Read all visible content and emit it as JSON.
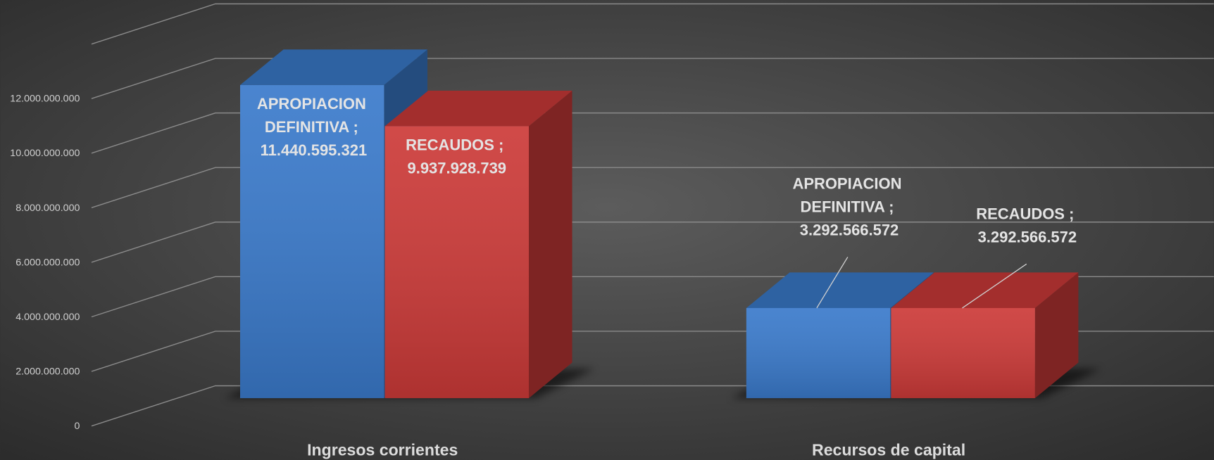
{
  "chart_data": {
    "type": "bar3d",
    "categories": [
      "Ingresos corrientes",
      "Recursos de capital"
    ],
    "series": [
      {
        "name": "APROPIACION DEFINITIVA",
        "color": "#3a7acb",
        "values": [
          11440595321,
          3292566572
        ],
        "value_labels": [
          "APROPIACION DEFINITIVA ; 11.440.595.321",
          "APROPIACION DEFINITIVA ; 3.292.566.572"
        ]
      },
      {
        "name": "RECAUDOS",
        "color": "#cc3a38",
        "values": [
          9937928739,
          3292566572
        ],
        "value_labels": [
          "RECAUDOS ; 9.937.928.739",
          "RECAUDOS ; 3.292.566.572"
        ]
      }
    ],
    "ylim": [
      0,
      14000000000
    ],
    "yticks": [
      {
        "value": 0,
        "label": "0"
      },
      {
        "value": 2000000000,
        "label": "2.000.000.000"
      },
      {
        "value": 4000000000,
        "label": "4.000.000.000"
      },
      {
        "value": 6000000000,
        "label": "6.000.000.000"
      },
      {
        "value": 8000000000,
        "label": "8.000.000.000"
      },
      {
        "value": 10000000000,
        "label": "10.000.000.000"
      },
      {
        "value": 12000000000,
        "label": "12.000.000.000"
      }
    ],
    "grid": true
  }
}
